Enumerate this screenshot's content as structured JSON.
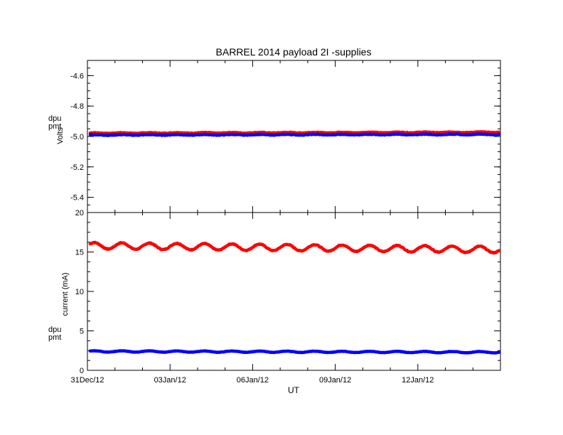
{
  "title": "BARREL 2014 payload 2I -supplies",
  "colors": {
    "dpu": "#ff0000",
    "pmt": "#0000ff",
    "axis": "#000000"
  },
  "x_tick_labels": [
    "31Dec/12",
    "03Jan/12",
    "06Jan/12",
    "09Jan/12",
    "12Jan/12"
  ],
  "xlabel": "UT",
  "chart_data": [
    {
      "type": "line",
      "panel": "top",
      "ylabel": "Volts",
      "ylim": [
        -5.5,
        -4.5
      ],
      "yticks": [
        -4.6,
        -4.8,
        -5.0,
        -5.2,
        -5.4
      ],
      "ytick_labels": [
        "-4.6",
        "-4.8",
        "-5.0",
        "-5.2",
        "-5.4"
      ],
      "xlim_days": [
        0,
        15
      ],
      "legend": [
        "dpu",
        "pmt"
      ],
      "series": [
        {
          "name": "dpu",
          "color": "#ff0000",
          "kind": "flat",
          "base": -4.978,
          "amp": 0.002,
          "period_days": 1,
          "trend": 0.006,
          "noise": 0.002
        },
        {
          "name": "pmt",
          "color": "#0000ff",
          "kind": "flat",
          "base": -4.99,
          "amp": 0.002,
          "period_days": 1,
          "trend": 0.004,
          "noise": 0.002
        }
      ]
    },
    {
      "type": "line",
      "panel": "bottom",
      "ylabel": "current (mA)",
      "ylim": [
        0,
        20
      ],
      "yticks": [
        0,
        5,
        10,
        15,
        20
      ],
      "ytick_labels": [
        "0",
        "5",
        "10",
        "15",
        "20"
      ],
      "xlim_days": [
        0,
        15
      ],
      "legend": [
        "dpu",
        "pmt"
      ],
      "series": [
        {
          "name": "dpu",
          "color": "#ff0000",
          "kind": "sine",
          "base": 15.8,
          "amp": 0.4,
          "period_days": 1,
          "trend": -0.5,
          "noise": 0.05
        },
        {
          "name": "pmt",
          "color": "#0000ff",
          "kind": "sine",
          "base": 2.4,
          "amp": 0.08,
          "period_days": 1,
          "trend": -0.1,
          "noise": 0.02
        }
      ]
    }
  ]
}
